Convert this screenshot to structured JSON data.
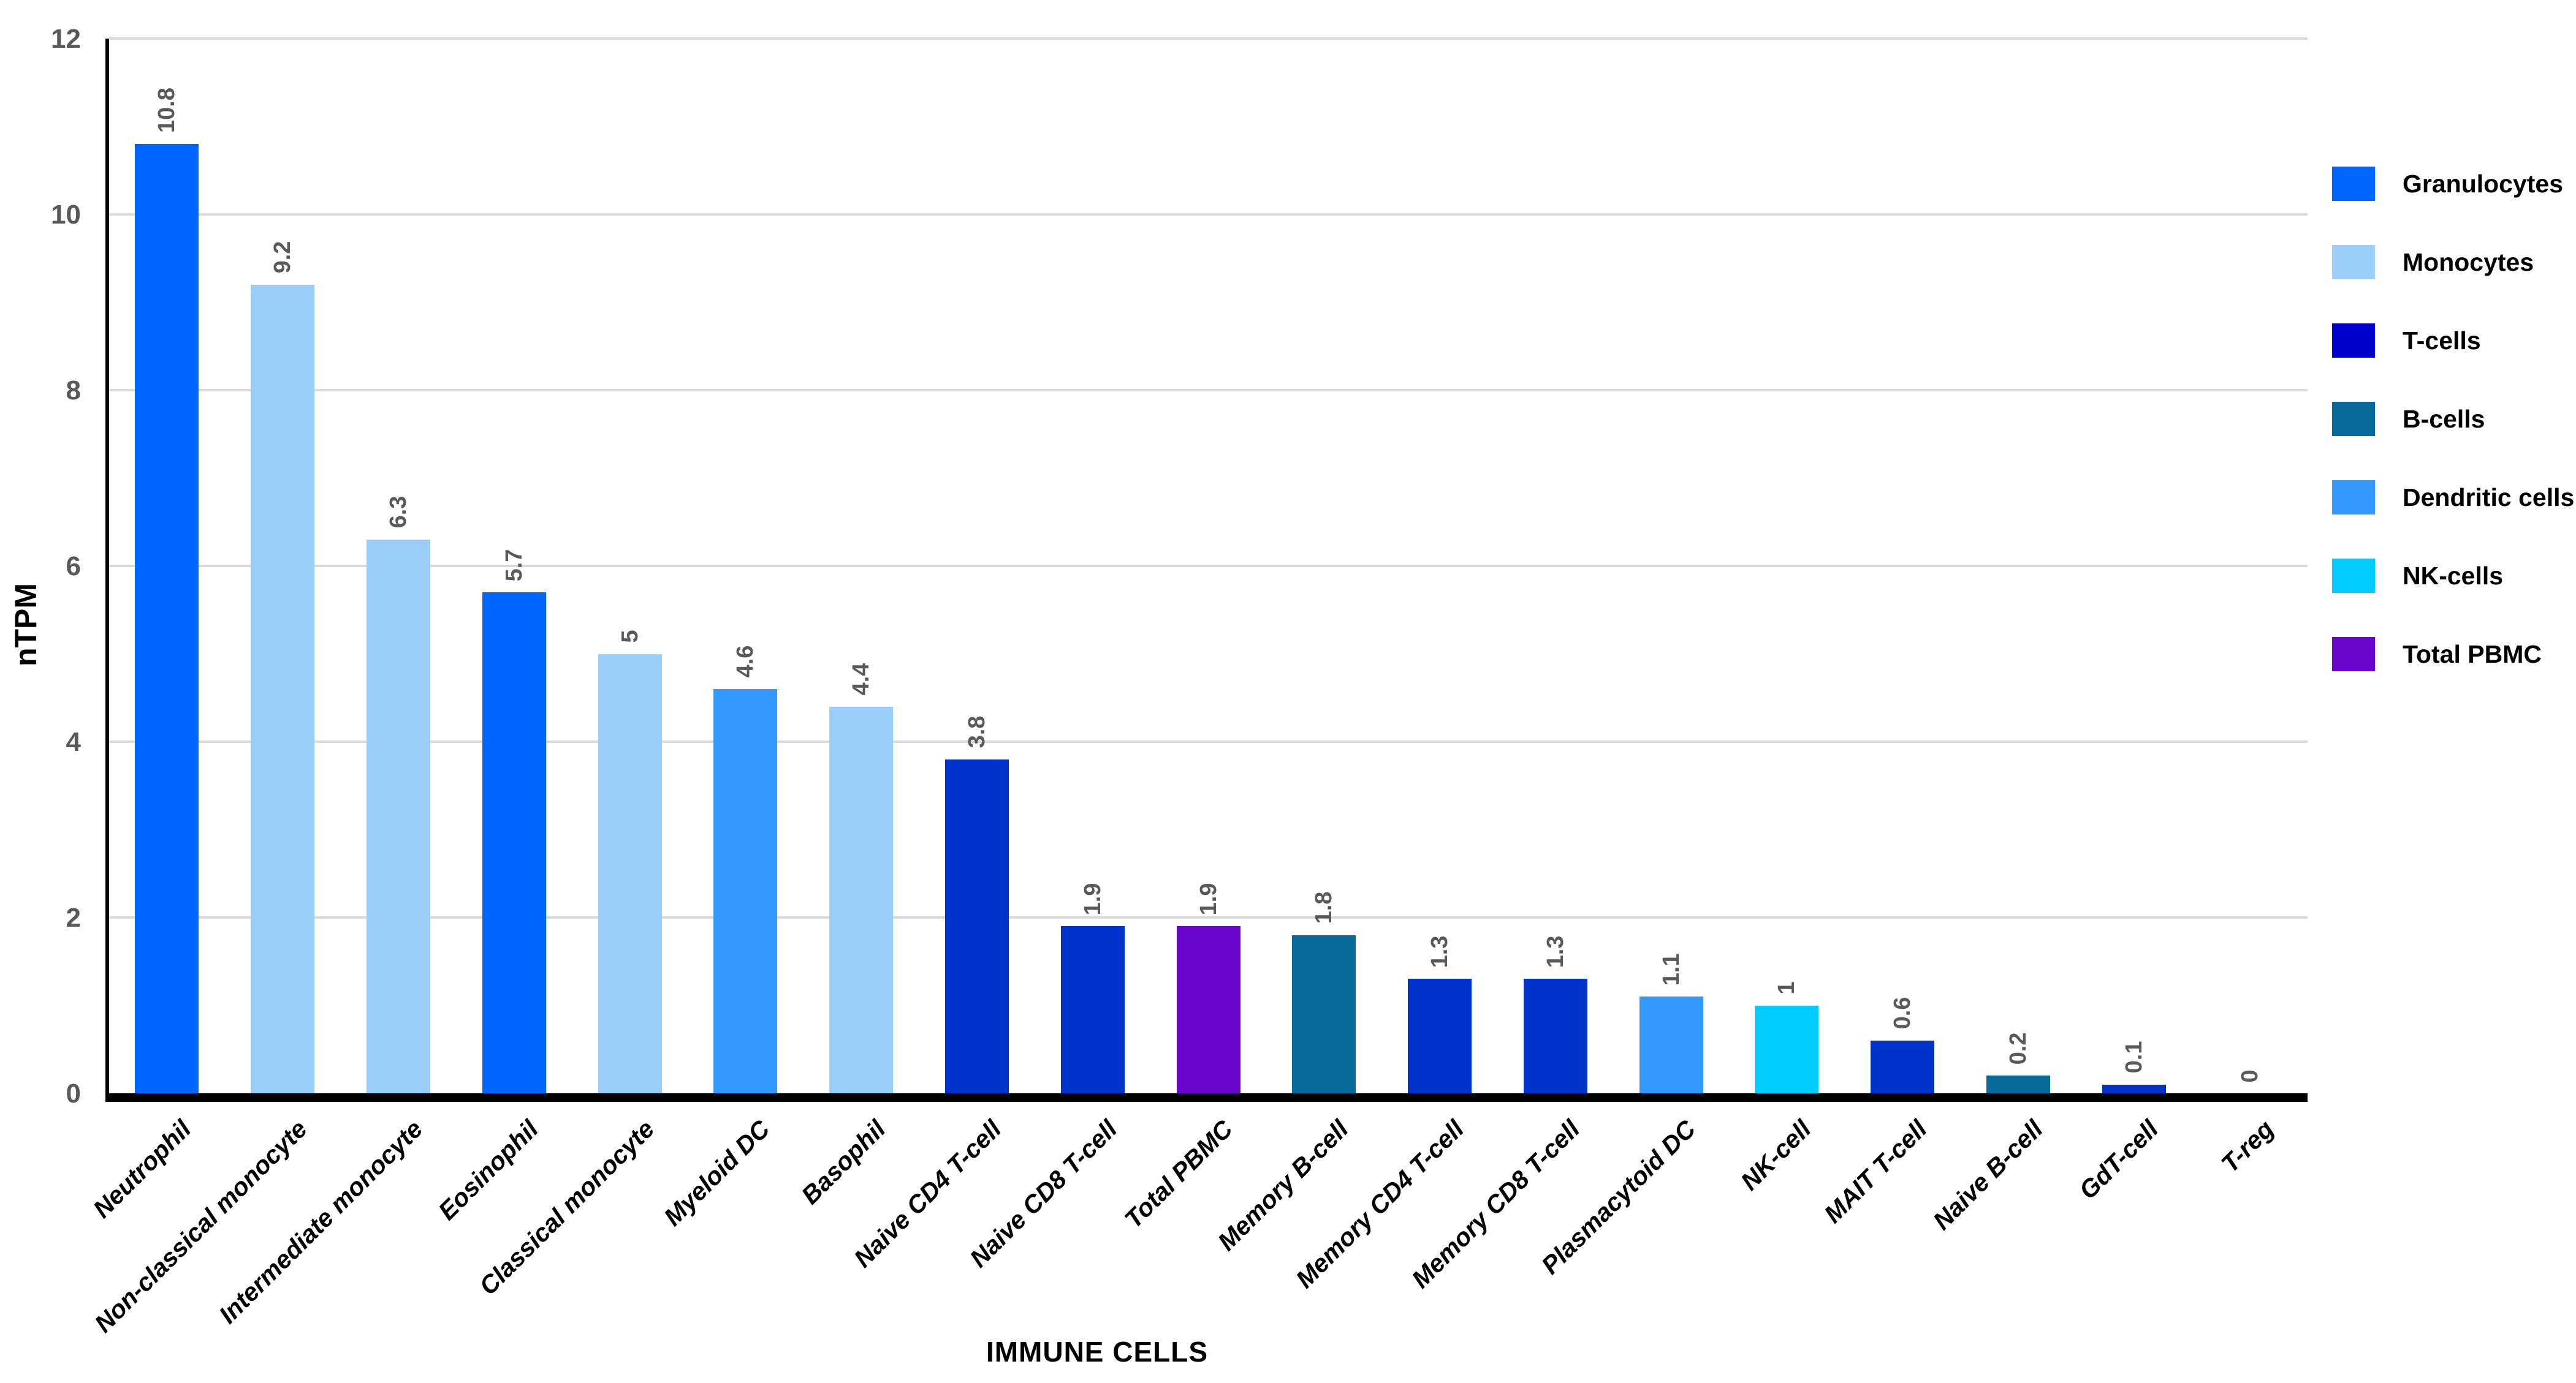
{
  "chart_data": {
    "type": "bar",
    "title": "",
    "xlabel": "IMMUNE CELLS",
    "ylabel": "nTPM",
    "ylim": [
      0,
      12
    ],
    "yticks": [
      0,
      2,
      4,
      6,
      8,
      10,
      12
    ],
    "grid": true,
    "legend_position": "right",
    "categories": [
      "Neutrophil",
      "Non-classical monocyte",
      "Intermediate monocyte",
      "Eosinophil",
      "Classical monocyte",
      "Myeloid DC",
      "Basophil",
      "Naive CD4 T-cell",
      "Naive CD8 T-cell",
      "Total PBMC",
      "Memory B-cell",
      "Memory CD4 T-cell",
      "Memory CD8 T-cell",
      "Plasmacytoid DC",
      "NK-cell",
      "MAIT T-cell",
      "Naive B-cell",
      "GdT-cell",
      "T-reg"
    ],
    "values": [
      10.8,
      9.2,
      6.3,
      5.7,
      5,
      4.6,
      4.4,
      3.8,
      1.9,
      1.9,
      1.8,
      1.3,
      1.3,
      1.1,
      1,
      0.6,
      0.2,
      0.1,
      0
    ],
    "bars": [
      {
        "category": "Neutrophil",
        "value": 10.8,
        "label": "10.8",
        "group": "granulocytes",
        "color": "#0066ff"
      },
      {
        "category": "Non-classical monocyte",
        "value": 9.2,
        "label": "9.2",
        "group": "monocytes",
        "color": "#9bcdf9"
      },
      {
        "category": "Intermediate monocyte",
        "value": 6.3,
        "label": "6.3",
        "group": "monocytes",
        "color": "#9bcdf9"
      },
      {
        "category": "Eosinophil",
        "value": 5.7,
        "label": "5.7",
        "group": "granulocytes",
        "color": "#0066ff"
      },
      {
        "category": "Classical monocyte",
        "value": 5,
        "label": "5",
        "group": "monocytes",
        "color": "#9bcdf9"
      },
      {
        "category": "Myeloid DC",
        "value": 4.6,
        "label": "4.6",
        "group": "dendritic-cells",
        "color": "#3399ff"
      },
      {
        "category": "Basophil",
        "value": 4.4,
        "label": "4.4",
        "group": "monocytes",
        "color": "#9bcdf9"
      },
      {
        "category": "Naive CD4 T-cell",
        "value": 3.8,
        "label": "3.8",
        "group": "t-cells",
        "color": "#0033cc"
      },
      {
        "category": "Naive CD8 T-cell",
        "value": 1.9,
        "label": "1.9",
        "group": "t-cells",
        "color": "#0033cc"
      },
      {
        "category": "Total PBMC",
        "value": 1.9,
        "label": "1.9",
        "group": "total-pbmc",
        "color": "#6a05cc"
      },
      {
        "category": "Memory B-cell",
        "value": 1.8,
        "label": "1.8",
        "group": "b-cells",
        "color": "#076a9a"
      },
      {
        "category": "Memory CD4 T-cell",
        "value": 1.3,
        "label": "1.3",
        "group": "t-cells",
        "color": "#0033cc"
      },
      {
        "category": "Memory CD8 T-cell",
        "value": 1.3,
        "label": "1.3",
        "group": "t-cells",
        "color": "#0033cc"
      },
      {
        "category": "Plasmacytoid DC",
        "value": 1.1,
        "label": "1.1",
        "group": "dendritic-cells",
        "color": "#3399ff"
      },
      {
        "category": "NK-cell",
        "value": 1,
        "label": "1",
        "group": "nk-cells",
        "color": "#00ccff"
      },
      {
        "category": "MAIT T-cell",
        "value": 0.6,
        "label": "0.6",
        "group": "t-cells",
        "color": "#0033cc"
      },
      {
        "category": "Naive B-cell",
        "value": 0.2,
        "label": "0.2",
        "group": "b-cells",
        "color": "#076a9a"
      },
      {
        "category": "GdT-cell",
        "value": 0.1,
        "label": "0.1",
        "group": "t-cells",
        "color": "#0033cc"
      },
      {
        "category": "T-reg",
        "value": 0,
        "label": "0",
        "group": "t-cells",
        "color": "#0033cc"
      }
    ],
    "legend": [
      {
        "label": "Granulocytes",
        "color": "#0066ff"
      },
      {
        "label": "Monocytes",
        "color": "#9bcdf9"
      },
      {
        "label": "T-cells",
        "color": "#0000cc"
      },
      {
        "label": "B-cells",
        "color": "#076a9a"
      },
      {
        "label": "Dendritic cells",
        "color": "#3399ff"
      },
      {
        "label": "NK-cells",
        "color": "#00ccff"
      },
      {
        "label": "Total PBMC",
        "color": "#6a05cc"
      }
    ],
    "style": {
      "grid_color": "#d9d9d9",
      "axis_color": "#000000",
      "tick_label_color": "#595959",
      "value_label_color": "#595959",
      "category_label_color": "#000000"
    }
  }
}
